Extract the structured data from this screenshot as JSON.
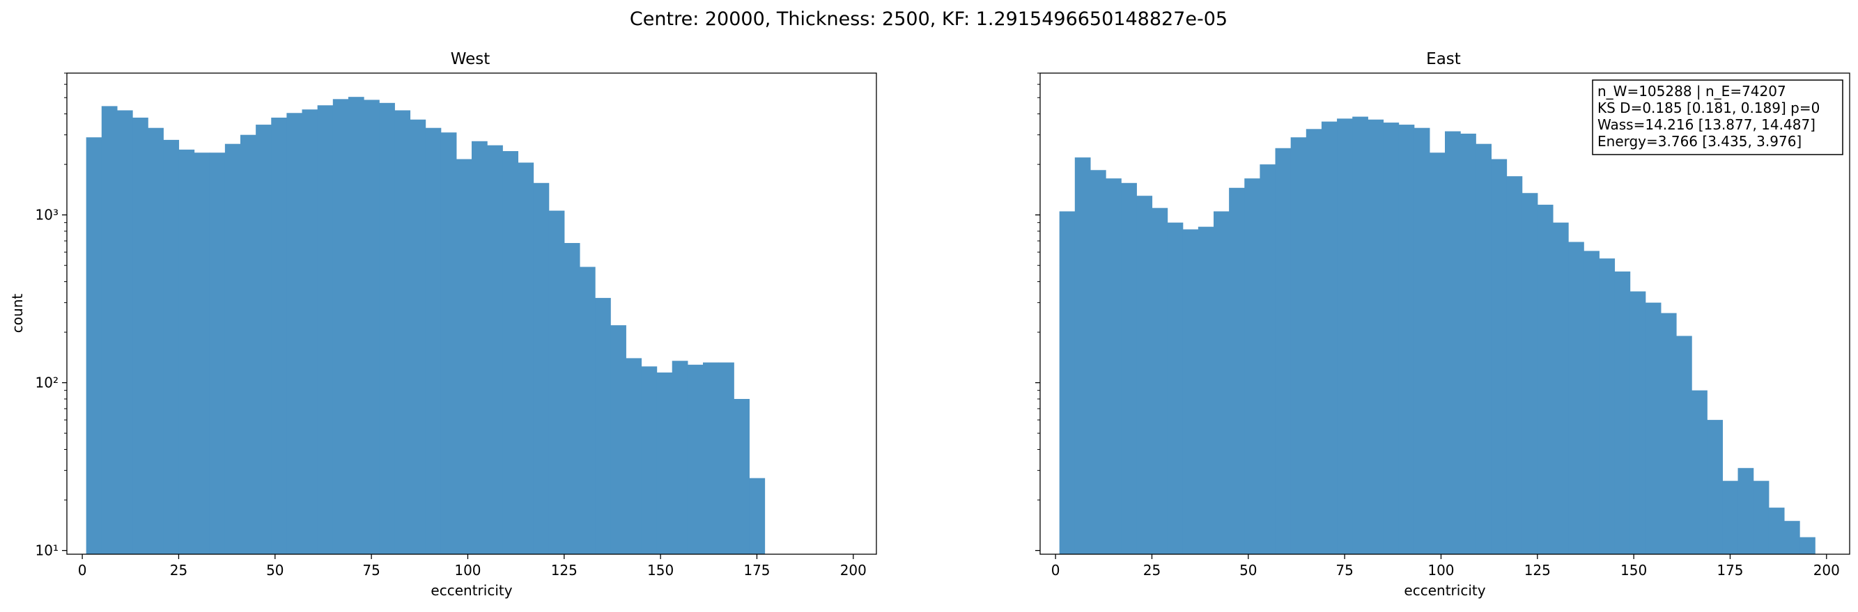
{
  "figure_title": "Centre: 20000, Thickness: 2500, KF: 1.2915496650148827e-05",
  "colors": {
    "bar": "#4d93c4",
    "axis": "#000000",
    "background": "#ffffff"
  },
  "chart_data": [
    {
      "type": "bar",
      "title": "West",
      "xlabel": "eccentricity",
      "ylabel": "count",
      "xlim": [
        -4,
        206
      ],
      "ylim": [
        9.5,
        7000
      ],
      "yscale": "log",
      "xticks": [
        0,
        25,
        50,
        75,
        100,
        125,
        150,
        175,
        200
      ],
      "xtick_labels": [
        "0",
        "25",
        "50",
        "75",
        "100",
        "125",
        "150",
        "175",
        "200"
      ],
      "yticks": [
        10,
        100,
        1000
      ],
      "ytick_labels": [
        "10¹",
        "10²",
        "10³"
      ],
      "bin_edges": [
        1,
        5,
        9,
        13,
        17,
        21,
        25,
        29,
        33,
        37,
        41,
        45,
        49,
        53,
        57,
        61,
        65,
        69,
        73,
        77,
        81,
        85,
        89,
        93,
        97,
        101,
        105,
        109,
        113,
        117,
        121,
        125,
        129,
        133,
        137,
        141,
        145,
        149,
        153,
        157,
        161,
        165,
        169,
        173,
        177,
        181,
        185,
        189,
        193,
        197
      ],
      "values": [
        2900,
        4450,
        4200,
        3800,
        3300,
        2800,
        2450,
        2350,
        2350,
        2650,
        3000,
        3450,
        3800,
        4050,
        4250,
        4500,
        4900,
        5050,
        4850,
        4650,
        4200,
        3700,
        3300,
        3100,
        2150,
        2750,
        2600,
        2400,
        2050,
        1550,
        1060,
        680,
        490,
        320,
        220,
        140,
        125,
        115,
        135,
        128,
        132,
        132,
        80,
        27,
        0,
        0,
        0,
        0,
        0
      ]
    },
    {
      "type": "bar",
      "title": "East",
      "xlabel": "eccentricity",
      "xlim": [
        -4,
        206
      ],
      "ylim": [
        9.5,
        7000
      ],
      "yscale": "log",
      "xticks": [
        0,
        25,
        50,
        75,
        100,
        125,
        150,
        175,
        200
      ],
      "xtick_labels": [
        "0",
        "25",
        "50",
        "75",
        "100",
        "125",
        "150",
        "175",
        "200"
      ],
      "bin_edges": [
        1,
        5,
        9,
        13,
        17,
        21,
        25,
        29,
        33,
        37,
        41,
        45,
        49,
        53,
        57,
        61,
        65,
        69,
        73,
        77,
        81,
        85,
        89,
        93,
        97,
        101,
        105,
        109,
        113,
        117,
        121,
        125,
        129,
        133,
        137,
        141,
        145,
        149,
        153,
        157,
        161,
        165,
        169,
        173,
        177,
        181,
        185,
        189,
        193,
        197
      ],
      "values": [
        1050,
        2200,
        1850,
        1650,
        1550,
        1300,
        1100,
        900,
        820,
        850,
        1050,
        1450,
        1650,
        2000,
        2500,
        2900,
        3250,
        3600,
        3750,
        3850,
        3700,
        3550,
        3450,
        3300,
        2350,
        3150,
        3050,
        2650,
        2150,
        1700,
        1350,
        1150,
        900,
        690,
        610,
        550,
        460,
        350,
        300,
        260,
        190,
        90,
        60,
        26,
        31,
        26,
        18,
        15,
        12
      ],
      "annotation": [
        "n_W=105288 | n_E=74207",
        "KS D=0.185 [0.181, 0.189]  p=0",
        "Wass=14.216 [13.877, 14.487]",
        "Energy=3.766 [3.435, 3.976]"
      ]
    }
  ]
}
